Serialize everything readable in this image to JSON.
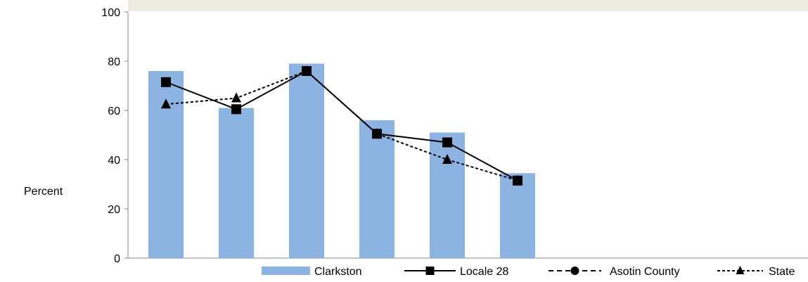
{
  "chart_data": {
    "type": "bar",
    "ylabel": "Percent",
    "ylim": [
      0,
      100
    ],
    "y_ticks": [
      "0",
      "20",
      "40",
      "60",
      "80",
      "100"
    ],
    "categories": [
      "",
      "",
      "",
      "",
      "",
      ""
    ],
    "series": [
      {
        "name": "Clarkston",
        "kind": "bar",
        "color": "#8DB3E2",
        "values": [
          76,
          61,
          79,
          56,
          51,
          34.5
        ]
      },
      {
        "name": "Locale 28",
        "kind": "line",
        "marker": "square",
        "dash": "solid",
        "color": "#000000",
        "values": [
          71.5,
          60.5,
          76,
          50.5,
          47,
          31.5
        ]
      },
      {
        "name": "Asotin County",
        "kind": "line",
        "marker": "circle",
        "dash": "dashed",
        "color": "#000000",
        "values": [
          null,
          null,
          null,
          null,
          null,
          null
        ]
      },
      {
        "name": "State",
        "kind": "line",
        "marker": "triangle",
        "dash": "dotted",
        "color": "#000000",
        "values": [
          62.5,
          65,
          76,
          50.5,
          40,
          31.5
        ]
      }
    ],
    "legend_position": "bottom",
    "grid": false,
    "header_band_color": "#EEECE1"
  }
}
